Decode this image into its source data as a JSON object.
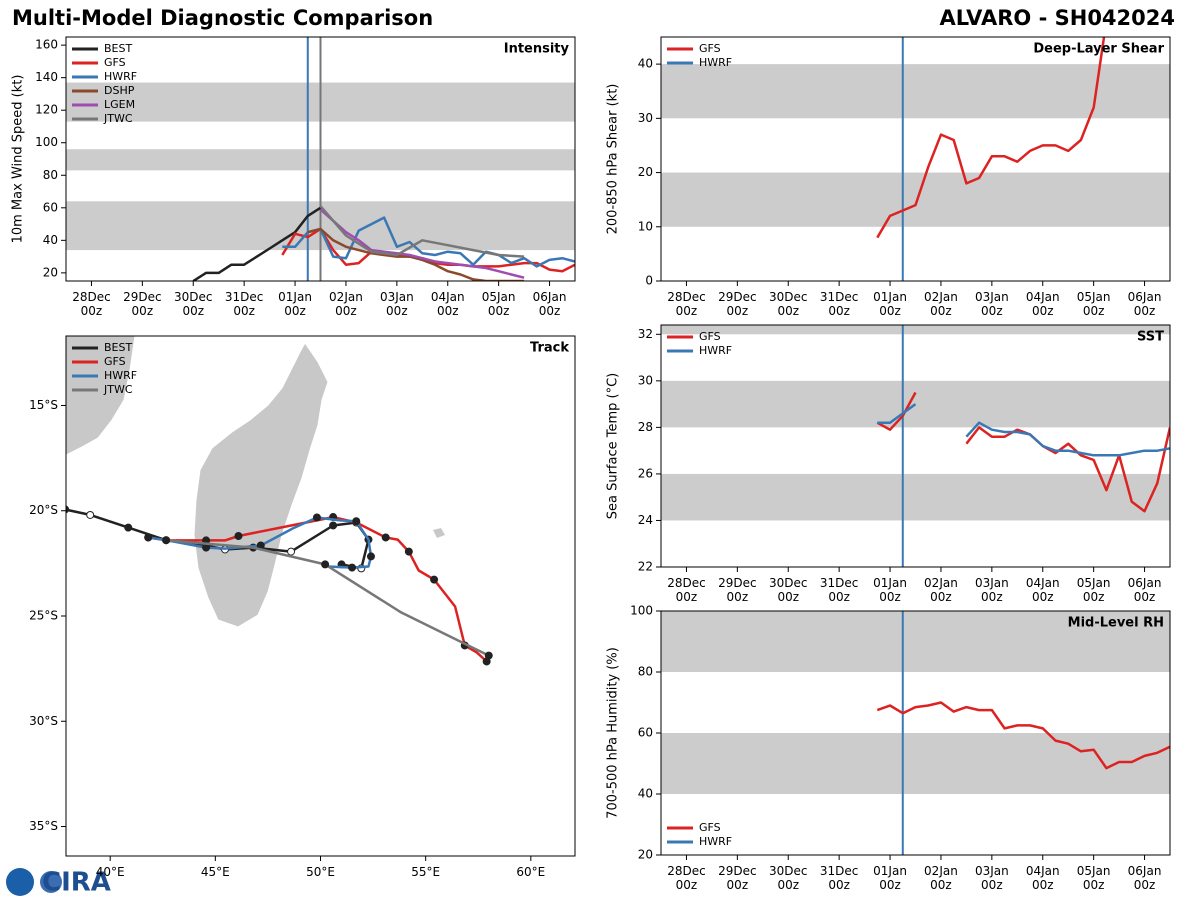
{
  "header": {
    "title": "Multi-Model Diagnostic Comparison",
    "storm": "ALVARO - SH042024",
    "logo": "CIRA"
  },
  "chart_data": [
    {
      "type": "line",
      "title": "Intensity",
      "y_label": "10m Max Wind Speed (kt)",
      "xlim": [
        -0.5,
        9.5
      ],
      "xticks": [
        {
          "value": 0,
          "label": "28Dec\n00z"
        },
        {
          "value": 1,
          "label": "29Dec\n00z"
        },
        {
          "value": 2,
          "label": "30Dec\n00z"
        },
        {
          "value": 3,
          "label": "31Dec\n00z"
        },
        {
          "value": 4,
          "label": "01Jan\n00z"
        },
        {
          "value": 5,
          "label": "02Jan\n00z"
        },
        {
          "value": 6,
          "label": "03Jan\n00z"
        },
        {
          "value": 7,
          "label": "04Jan\n00z"
        },
        {
          "value": 8,
          "label": "05Jan\n00z"
        },
        {
          "value": 9,
          "label": "06Jan\n00z"
        }
      ],
      "ylim": [
        15,
        165
      ],
      "yticks": [
        20,
        40,
        60,
        80,
        100,
        120,
        140,
        160
      ],
      "bands": [
        [
          34,
          64
        ],
        [
          83,
          96
        ],
        [
          113,
          137
        ]
      ],
      "vlines": [
        {
          "x": 4.25,
          "color": "#3a78b5"
        },
        {
          "x": 4.5,
          "color": "#777777"
        }
      ],
      "legend": "upper left",
      "series": [
        {
          "name": "BEST",
          "color": "#222222",
          "x": [
            2,
            2.25,
            2.5,
            2.75,
            3,
            3.25,
            3.5,
            3.75,
            4,
            4.25,
            4.5
          ],
          "values": [
            15,
            20,
            20,
            25,
            25,
            30,
            35,
            40,
            45,
            55,
            60
          ]
        },
        {
          "name": "GFS",
          "color": "#dd2222",
          "x": [
            3.75,
            4,
            4.25,
            4.5,
            4.75,
            5,
            5.25,
            5.5,
            5.75,
            6,
            6.25,
            6.5,
            6.75,
            7,
            7.25,
            7.5,
            7.75,
            8,
            8.25,
            8.5,
            8.75,
            9,
            9.25,
            9.5
          ],
          "values": [
            31,
            44,
            42,
            47,
            34,
            25,
            26,
            33,
            32,
            31,
            30,
            29,
            26,
            25,
            25,
            24,
            24,
            24,
            25,
            26,
            26,
            22,
            21,
            25
          ]
        },
        {
          "name": "HWRF",
          "color": "#3a78b5",
          "x": [
            3.75,
            4,
            4.25,
            4.5,
            4.75,
            5,
            5.25,
            5.5,
            5.75,
            6,
            6.25,
            6.5,
            6.75,
            7,
            7.25,
            7.5,
            7.75,
            8,
            8.25,
            8.5,
            8.75,
            9,
            9.25,
            9.5
          ],
          "values": [
            36,
            36,
            45,
            47,
            30,
            29,
            46,
            50,
            54,
            36,
            39,
            32,
            31,
            33,
            32,
            25,
            33,
            31,
            26,
            29,
            24,
            28,
            29,
            27
          ]
        },
        {
          "name": "DSHP",
          "color": "#8b4a2b",
          "x": [
            4.25,
            4.5,
            4.75,
            5,
            5.25,
            5.5,
            5.75,
            6,
            6.25,
            6.5,
            6.75,
            7,
            7.25,
            7.5,
            7.75,
            8,
            8.25,
            8.5
          ],
          "values": [
            45,
            47,
            40,
            36,
            34,
            32,
            31,
            30,
            30,
            28,
            25,
            21,
            19,
            16,
            15,
            15,
            15,
            15
          ]
        },
        {
          "name": "LGEM",
          "color": "#a04db0",
          "x": [
            4.5,
            4.75,
            5,
            5.25,
            5.5,
            5.75,
            6,
            6.25,
            6.5,
            6.75,
            7,
            7.25,
            7.5,
            7.75,
            8,
            8.25,
            8.5
          ],
          "values": [
            59,
            52,
            45,
            40,
            34,
            33,
            32,
            31,
            29,
            27,
            26,
            25,
            24,
            23,
            21,
            19,
            17
          ]
        },
        {
          "name": "JTWC",
          "color": "#777777",
          "x": [
            4.5,
            5,
            5.5,
            6,
            6.5,
            7,
            7.5,
            8,
            8.5
          ],
          "values": [
            61,
            43,
            33,
            31,
            40,
            37,
            34,
            31,
            30
          ]
        }
      ]
    },
    {
      "type": "line",
      "title": "Deep-Layer Shear",
      "y_label": "200-850 hPa Shear (kt)",
      "xlim": [
        -0.5,
        9.5
      ],
      "xticks": [
        {
          "value": 0,
          "label": "28Dec\n00z"
        },
        {
          "value": 1,
          "label": "29Dec\n00z"
        },
        {
          "value": 2,
          "label": "30Dec\n00z"
        },
        {
          "value": 3,
          "label": "31Dec\n00z"
        },
        {
          "value": 4,
          "label": "01Jan\n00z"
        },
        {
          "value": 5,
          "label": "02Jan\n00z"
        },
        {
          "value": 6,
          "label": "03Jan\n00z"
        },
        {
          "value": 7,
          "label": "04Jan\n00z"
        },
        {
          "value": 8,
          "label": "05Jan\n00z"
        },
        {
          "value": 9,
          "label": "06Jan\n00z"
        }
      ],
      "ylim": [
        0,
        45
      ],
      "yticks": [
        0,
        10,
        20,
        30,
        40
      ],
      "bands": [
        [
          10,
          20
        ],
        [
          30,
          40
        ]
      ],
      "vlines": [
        {
          "x": 4.25,
          "color": "#3a78b5"
        }
      ],
      "legend": "upper left",
      "series": [
        {
          "name": "GFS",
          "color": "#dd2222",
          "x": [
            3.75,
            4,
            4.25,
            4.5,
            4.75,
            5,
            5.25,
            5.5,
            5.75,
            6,
            6.25,
            6.5,
            6.75,
            7,
            7.25,
            7.5,
            7.75,
            8,
            8.25
          ],
          "values": [
            8,
            12,
            13,
            14,
            21,
            27,
            26,
            18,
            19,
            23,
            23,
            22,
            24,
            25,
            25,
            24,
            26,
            32,
            48
          ]
        },
        {
          "name": "HWRF",
          "color": "#3a78b5",
          "x": [],
          "values": []
        }
      ]
    },
    {
      "type": "track",
      "title": "Track",
      "xlim": [
        37.9,
        62.1
      ],
      "xticks": [
        {
          "value": 40,
          "label": "40°E"
        },
        {
          "value": 45,
          "label": "45°E"
        },
        {
          "value": 50,
          "label": "50°E"
        },
        {
          "value": 55,
          "label": "55°E"
        },
        {
          "value": 60,
          "label": "60°E"
        }
      ],
      "ylim": [
        -36.4,
        -11.7
      ],
      "yticks": [
        {
          "value": -15,
          "label": "15°S"
        },
        {
          "value": -20,
          "label": "20°S"
        },
        {
          "value": -25,
          "label": "25°S"
        },
        {
          "value": -30,
          "label": "30°S"
        },
        {
          "value": -35,
          "label": "35°S"
        }
      ],
      "legend": "upper left",
      "series": [
        {
          "name": "BEST",
          "color": "#222222",
          "x": [
            37.86,
            39.05,
            40.86,
            42.66,
            44.56,
            45.46,
            46.8,
            48.6,
            50.6,
            51.7,
            52.28,
            51.94,
            51.0
          ],
          "values": [
            -19.94,
            -20.2,
            -20.8,
            -21.4,
            -21.65,
            -21.84,
            -21.75,
            -21.94,
            -20.7,
            -20.56,
            -21.37,
            -22.74,
            -22.55
          ]
        },
        {
          "name": "GFS",
          "color": "#dd2222",
          "x": [
            41.81,
            42.66,
            44.56,
            45.46,
            46.1,
            48.6,
            50.6,
            51.7,
            53.1,
            53.67,
            54.2,
            54.67,
            55.4,
            56.4,
            56.86,
            57.43,
            57.9
          ],
          "values": [
            -21.27,
            -21.4,
            -21.41,
            -21.41,
            -21.2,
            -20.7,
            -20.3,
            -20.56,
            -21.27,
            -21.37,
            -21.94,
            -22.84,
            -23.27,
            -24.55,
            -26.4,
            -26.73,
            -27.16
          ]
        },
        {
          "name": "HWRF",
          "color": "#3a78b5",
          "x": [
            41.81,
            42.66,
            44.56,
            45.46,
            47.16,
            48.69,
            49.83,
            50.92,
            51.7,
            52.28,
            52.4,
            52.28,
            51.5,
            50.36
          ],
          "values": [
            -21.27,
            -21.4,
            -21.75,
            -21.8,
            -21.65,
            -20.84,
            -20.32,
            -20.46,
            -20.5,
            -21.37,
            -22.17,
            -22.65,
            -22.7,
            -22.65
          ]
        },
        {
          "name": "JTWC",
          "color": "#777777",
          "x": [
            42.66,
            46.8,
            50.22,
            53.83,
            58.0
          ],
          "values": [
            -21.4,
            -21.75,
            -22.55,
            -24.83,
            -26.88
          ]
        }
      ]
    },
    {
      "type": "line",
      "title": "SST",
      "y_label": "Sea Surface Temp (°C)",
      "xlim": [
        -0.5,
        9.5
      ],
      "xticks": [
        {
          "value": 0,
          "label": "28Dec\n00z"
        },
        {
          "value": 1,
          "label": "29Dec\n00z"
        },
        {
          "value": 2,
          "label": "30Dec\n00z"
        },
        {
          "value": 3,
          "label": "31Dec\n00z"
        },
        {
          "value": 4,
          "label": "01Jan\n00z"
        },
        {
          "value": 5,
          "label": "02Jan\n00z"
        },
        {
          "value": 6,
          "label": "03Jan\n00z"
        },
        {
          "value": 7,
          "label": "04Jan\n00z"
        },
        {
          "value": 8,
          "label": "05Jan\n00z"
        },
        {
          "value": 9,
          "label": "06Jan\n00z"
        }
      ],
      "ylim": [
        22,
        32.4
      ],
      "yticks": [
        22,
        24,
        26,
        28,
        30,
        32
      ],
      "bands": [
        [
          24,
          26
        ],
        [
          28,
          30
        ],
        [
          32,
          34
        ]
      ],
      "vlines": [
        {
          "x": 4.25,
          "color": "#3a78b5"
        }
      ],
      "legend": "upper left",
      "series": [
        {
          "name": "GFS",
          "color": "#dd2222",
          "x": [
            3.75,
            4,
            4.25,
            4.5,
            4.75,
            5,
            5.25,
            5.5,
            5.75,
            6,
            6.25,
            6.5,
            6.75,
            7,
            7.25,
            7.5,
            7.75,
            8,
            8.25,
            8.5,
            8.75,
            9,
            9.25,
            9.5
          ],
          "values": [
            28.2,
            27.9,
            28.5,
            29.5,
            null,
            null,
            null,
            27.3,
            28.0,
            27.6,
            27.6,
            27.9,
            27.7,
            27.2,
            26.9,
            27.3,
            26.8,
            26.6,
            25.3,
            26.8,
            24.8,
            24.4,
            25.6,
            28.0
          ]
        },
        {
          "name": "HWRF",
          "color": "#3a78b5",
          "x": [
            3.75,
            4,
            4.25,
            4.5,
            4.75,
            5,
            5.25,
            5.5,
            5.75,
            6,
            6.25,
            6.5,
            6.75,
            7,
            7.25,
            7.5,
            7.75,
            8,
            8.25,
            8.5,
            8.75,
            9,
            9.25,
            9.5
          ],
          "values": [
            28.2,
            28.2,
            28.6,
            29.0,
            null,
            null,
            null,
            27.6,
            28.2,
            27.9,
            27.8,
            27.8,
            27.7,
            27.2,
            27.0,
            27.0,
            26.9,
            26.8,
            26.8,
            26.8,
            26.9,
            27.0,
            27.0,
            27.1
          ]
        }
      ]
    },
    {
      "type": "line",
      "title": "Mid-Level RH",
      "y_label": "700-500 hPa Humidity (%)",
      "xlim": [
        -0.5,
        9.5
      ],
      "xticks": [
        {
          "value": 0,
          "label": "28Dec\n00z"
        },
        {
          "value": 1,
          "label": "29Dec\n00z"
        },
        {
          "value": 2,
          "label": "30Dec\n00z"
        },
        {
          "value": 3,
          "label": "31Dec\n00z"
        },
        {
          "value": 4,
          "label": "01Jan\n00z"
        },
        {
          "value": 5,
          "label": "02Jan\n00z"
        },
        {
          "value": 6,
          "label": "03Jan\n00z"
        },
        {
          "value": 7,
          "label": "04Jan\n00z"
        },
        {
          "value": 8,
          "label": "05Jan\n00z"
        },
        {
          "value": 9,
          "label": "06Jan\n00z"
        }
      ],
      "ylim": [
        20,
        100
      ],
      "yticks": [
        20,
        40,
        60,
        80,
        100
      ],
      "bands": [
        [
          40,
          60
        ],
        [
          80,
          100
        ]
      ],
      "vlines": [
        {
          "x": 4.25,
          "color": "#3a78b5"
        }
      ],
      "legend": "lower left",
      "series": [
        {
          "name": "GFS",
          "color": "#dd2222",
          "x": [
            3.75,
            4,
            4.25,
            4.5,
            4.75,
            5,
            5.25,
            5.5,
            5.75,
            6,
            6.25,
            6.5,
            6.75,
            7,
            7.25,
            7.5,
            7.75,
            8,
            8.25,
            8.5,
            8.75,
            9,
            9.25,
            9.5
          ],
          "values": [
            67.5,
            69,
            66.5,
            68.5,
            69,
            70,
            67,
            68.5,
            67.5,
            67.5,
            61.5,
            62.5,
            62.5,
            61.5,
            57.5,
            56.5,
            54,
            54.5,
            48.5,
            50.5,
            50.5,
            52.5,
            53.5,
            55.5
          ]
        },
        {
          "name": "HWRF",
          "color": "#3a78b5",
          "x": [],
          "values": []
        }
      ]
    }
  ]
}
